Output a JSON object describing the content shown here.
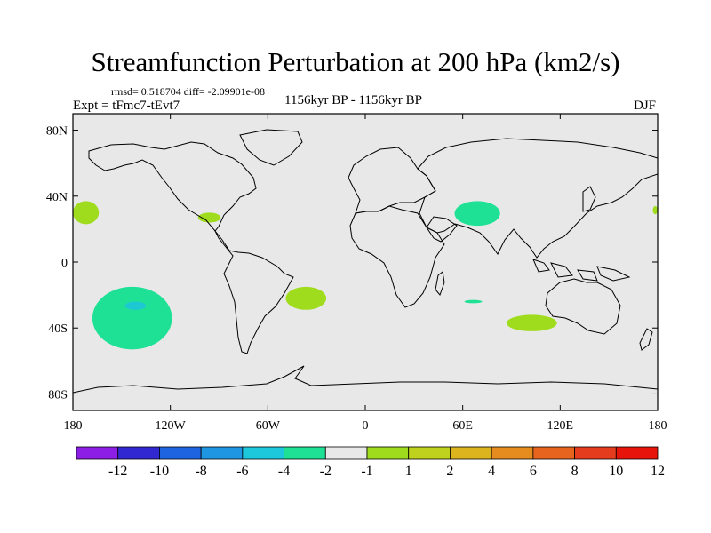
{
  "header": {
    "title": "Streamfunction Perturbation at 200 hPa (km2/s)",
    "stats": "rmsd= 0.518704 diff= -2.09901e-08",
    "experiment": "Expt = tFmc7-tEvt7",
    "period": "1156kyr BP - 1156kyr BP",
    "season": "DJF"
  },
  "map": {
    "projection": "cylindrical equidistant",
    "lon_range": [
      -180,
      180
    ],
    "lat_range": [
      -90,
      90
    ],
    "background_color": "#e8e8e8",
    "lat_ticks": [
      {
        "value": 80,
        "label": "80N"
      },
      {
        "value": 40,
        "label": "40N"
      },
      {
        "value": 0,
        "label": "0"
      },
      {
        "value": -40,
        "label": "40S"
      },
      {
        "value": -80,
        "label": "80S"
      }
    ],
    "lon_ticks": [
      {
        "value": -180,
        "label": "180"
      },
      {
        "value": -120,
        "label": "120W"
      },
      {
        "value": -60,
        "label": "60W"
      },
      {
        "value": 0,
        "label": "0"
      },
      {
        "value": 60,
        "label": "60E"
      },
      {
        "value": 120,
        "label": "120E"
      },
      {
        "value": 180,
        "label": "180"
      }
    ],
    "anomaly_regions": [
      {
        "name": "north-pacific-west",
        "level": "1 to 2",
        "color": "#a0dc1e",
        "lon": [
          -180,
          -164
        ],
        "lat": [
          23,
          37
        ]
      },
      {
        "name": "gulf-of-mexico",
        "level": "1 to 2",
        "color": "#a0dc1e",
        "lon": [
          -103,
          -89
        ],
        "lat": [
          24,
          30
        ]
      },
      {
        "name": "south-pacific",
        "level": "-2 to -1",
        "color": "#1ee196",
        "lon": [
          -168,
          -119
        ],
        "lat": [
          -53,
          -15
        ]
      },
      {
        "name": "south-pacific-core",
        "level": "-4 to -2",
        "color": "#1ec8d2",
        "lon": [
          -148,
          -135
        ],
        "lat": [
          -29,
          -24
        ]
      },
      {
        "name": "south-atlantic",
        "level": "1 to 2",
        "color": "#a0dc1e",
        "lon": [
          -49,
          -24
        ],
        "lat": [
          -29,
          -15
        ]
      },
      {
        "name": "tibetan-plateau",
        "level": "-2 to -1",
        "color": "#1ee196",
        "lon": [
          55,
          83
        ],
        "lat": [
          22,
          37
        ]
      },
      {
        "name": "indian-ocean-small",
        "level": "-2 to -1",
        "color": "#1ee196",
        "lon": [
          61,
          72
        ],
        "lat": [
          -25,
          -23
        ]
      },
      {
        "name": "south-indian-ocean",
        "level": "1 to 2",
        "color": "#a0dc1e",
        "lon": [
          87,
          118
        ],
        "lat": [
          -42,
          -32
        ]
      },
      {
        "name": "north-pacific-east-edge",
        "level": "1 to 2",
        "color": "#a0dc1e",
        "lon": [
          177,
          180
        ],
        "lat": [
          29,
          34
        ]
      }
    ]
  },
  "colorbar": {
    "colors": [
      "#8c1ee6",
      "#3228d2",
      "#1e64e1",
      "#1e96e1",
      "#1ec8dc",
      "#1ee196",
      "#e8e8e8",
      "#a0dc1e",
      "#bed21e",
      "#dcb41e",
      "#e68c1e",
      "#e6641e",
      "#e63c1e",
      "#e6140a"
    ],
    "labels": [
      "-12",
      "-10",
      "-8",
      "-6",
      "-4",
      "-2",
      "-1",
      "1",
      "2",
      "4",
      "6",
      "8",
      "10",
      "12"
    ]
  }
}
